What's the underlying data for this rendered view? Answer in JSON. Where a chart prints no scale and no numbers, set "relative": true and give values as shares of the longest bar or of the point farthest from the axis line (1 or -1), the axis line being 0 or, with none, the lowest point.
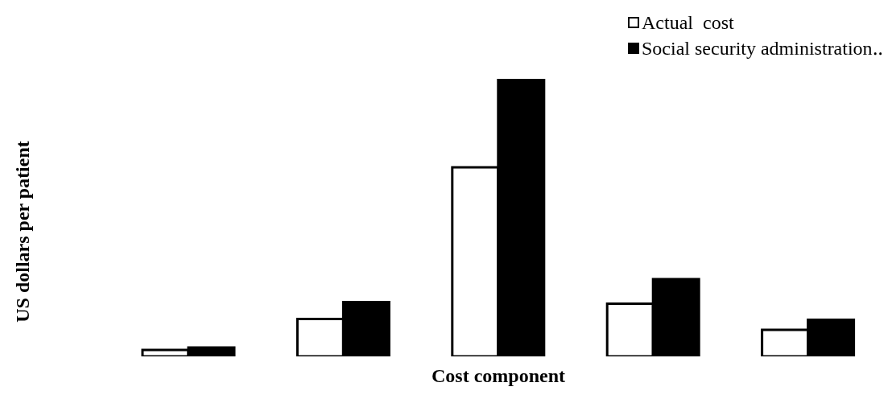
{
  "chart_data": {
    "type": "bar",
    "relative": true,
    "xlabel": "Cost component",
    "ylabel": "US dollars per patient",
    "categories": [
      null,
      null,
      null,
      null,
      null
    ],
    "series": [
      {
        "name": "Actual  cost",
        "color": "#ffffff",
        "values": [
          0.023,
          0.135,
          0.681,
          0.19,
          0.096
        ]
      },
      {
        "name": "Social security administration‥",
        "color": "#000000",
        "values": [
          0.032,
          0.196,
          1,
          0.278,
          0.132
        ]
      }
    ],
    "legend": "top right",
    "grid": false
  }
}
